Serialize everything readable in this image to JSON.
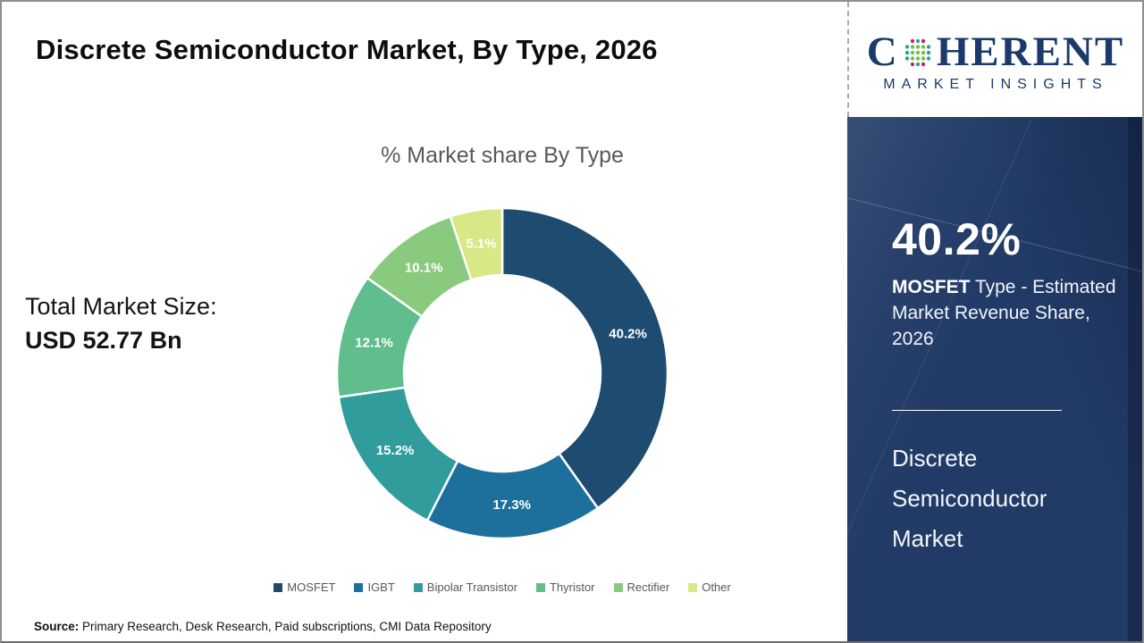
{
  "header": {
    "title": "Discrete Semiconductor Market, By Type, 2026"
  },
  "logo": {
    "part1": "C",
    "part2": "HERENT",
    "subtitle": "MARKET INSIGHTS",
    "brand_color": "#1B3A6B",
    "globe_icon_colors": {
      "teal": "#2E9E9E",
      "green": "#72BF44",
      "magenta": "#C9236A"
    }
  },
  "chart_data": {
    "type": "pie",
    "donut": true,
    "title": "% Market share By Type",
    "categories": [
      "MOSFET",
      "IGBT",
      "Bipolar Transistor",
      "Thyristor",
      "Rectifier",
      "Other"
    ],
    "values": [
      40.2,
      17.3,
      15.2,
      12.1,
      10.1,
      5.1
    ],
    "labels": [
      "40.2%",
      "17.3%",
      "15.2%",
      "12.1%",
      "10.1%",
      "5.1%"
    ],
    "colors": [
      "#1E4C70",
      "#1D709C",
      "#319C9C",
      "#60BD8C",
      "#8ACA7E",
      "#D8E886"
    ],
    "start_angle_deg": 0,
    "direction": "clockwise",
    "outer_radius": 185,
    "inner_radius": 110,
    "label_color": "#FFFFFF",
    "legend_position": "bottom",
    "legend_text_color": "#595959"
  },
  "total": {
    "label": "Total Market Size:",
    "value": "USD 52.77 Bn"
  },
  "sidebar": {
    "highlight_value": "40.2%",
    "highlight_bold": "MOSFET",
    "highlight_rest": " Type - Estimated Market Revenue Share, 2026",
    "market_name": "Discrete Semiconductor Market",
    "background_color": "#213A66"
  },
  "footer": {
    "source_label": "Source:",
    "source_text": " Primary Research, Desk Research, Paid subscriptions, CMI Data Repository"
  }
}
